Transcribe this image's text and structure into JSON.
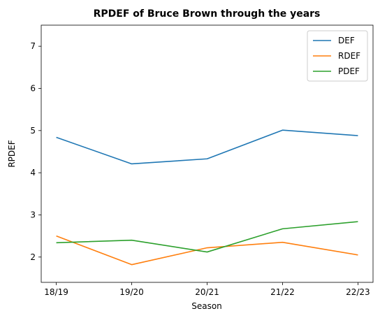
{
  "chart_data": {
    "type": "line",
    "title": "RPDEF of Bruce Brown through the years",
    "xlabel": "Season",
    "ylabel": "RPDEF",
    "categories": [
      "18/19",
      "19/20",
      "20/21",
      "21/22",
      "22/23"
    ],
    "ylim": [
      1.4,
      7.5
    ],
    "yticks": [
      2,
      3,
      4,
      5,
      6,
      7
    ],
    "grid": false,
    "legend": "top-right",
    "series": [
      {
        "name": "DEF",
        "color": "#1f77b4",
        "values": [
          4.84,
          4.21,
          4.33,
          5.01,
          4.88
        ]
      },
      {
        "name": "RDEF",
        "color": "#ff7f0e",
        "values": [
          2.5,
          1.82,
          2.22,
          2.35,
          2.05
        ]
      },
      {
        "name": "PDEF",
        "color": "#2ca02c",
        "values": [
          2.34,
          2.4,
          2.12,
          2.67,
          2.84
        ]
      }
    ]
  }
}
